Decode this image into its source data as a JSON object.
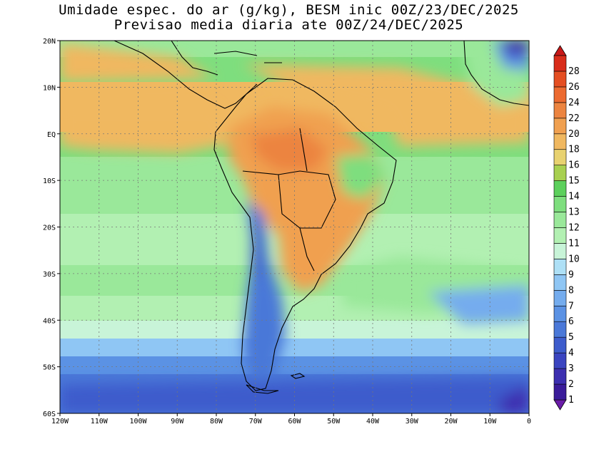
{
  "title": {
    "line1": "Umidade espec. do ar (g/kg), BESM inic 00Z/23/DEC/2025",
    "line2": "Previsao media diaria ate 00Z/24/DEC/2025"
  },
  "map": {
    "lon_range": [
      -120,
      0
    ],
    "lat_range": [
      -60,
      20
    ],
    "lon_ticks": [
      {
        "value": -120,
        "label": "120W"
      },
      {
        "value": -110,
        "label": "110W"
      },
      {
        "value": -100,
        "label": "100W"
      },
      {
        "value": -90,
        "label": "90W"
      },
      {
        "value": -80,
        "label": "80W"
      },
      {
        "value": -70,
        "label": "70W"
      },
      {
        "value": -60,
        "label": "60W"
      },
      {
        "value": -50,
        "label": "50W"
      },
      {
        "value": -40,
        "label": "40W"
      },
      {
        "value": -30,
        "label": "30W"
      },
      {
        "value": -20,
        "label": "20W"
      },
      {
        "value": -10,
        "label": "10W"
      },
      {
        "value": 0,
        "label": "0"
      }
    ],
    "lat_ticks": [
      {
        "value": 20,
        "label": "20N"
      },
      {
        "value": 10,
        "label": "10N"
      },
      {
        "value": 0,
        "label": "EQ"
      },
      {
        "value": -10,
        "label": "10S"
      },
      {
        "value": -20,
        "label": "20S"
      },
      {
        "value": -30,
        "label": "30S"
      },
      {
        "value": -40,
        "label": "40S"
      },
      {
        "value": -50,
        "label": "50S"
      },
      {
        "value": -60,
        "label": "60S"
      }
    ],
    "grid": true
  },
  "colorbar": {
    "levels": [
      {
        "label": "1",
        "color": "#3a1c9a"
      },
      {
        "label": "2",
        "color": "#3c2fb0"
      },
      {
        "label": "3",
        "color": "#3a44c0"
      },
      {
        "label": "4",
        "color": "#3d5ccc"
      },
      {
        "label": "5",
        "color": "#4a78d8"
      },
      {
        "label": "6",
        "color": "#5b92e4"
      },
      {
        "label": "7",
        "color": "#74acee"
      },
      {
        "label": "8",
        "color": "#8fc6f4"
      },
      {
        "label": "9",
        "color": "#aee0f6"
      },
      {
        "label": "10",
        "color": "#c8f4d8"
      },
      {
        "label": "11",
        "color": "#b2f0b2"
      },
      {
        "label": "12",
        "color": "#9ae89a"
      },
      {
        "label": "13",
        "color": "#7ede7e"
      },
      {
        "label": "14",
        "color": "#5cd05c"
      },
      {
        "label": "15",
        "color": "#a8d050"
      },
      {
        "label": "16",
        "color": "#e8d270"
      },
      {
        "label": "18",
        "color": "#f0b860"
      },
      {
        "label": "20",
        "color": "#f0a050"
      },
      {
        "label": "22",
        "color": "#ec8440"
      },
      {
        "label": "24",
        "color": "#ec6a30"
      },
      {
        "label": "26",
        "color": "#e44e22"
      },
      {
        "label": "28",
        "color": "#d82c1a"
      }
    ],
    "under_color": "#6a1ca8",
    "over_color": "#c81818"
  }
}
